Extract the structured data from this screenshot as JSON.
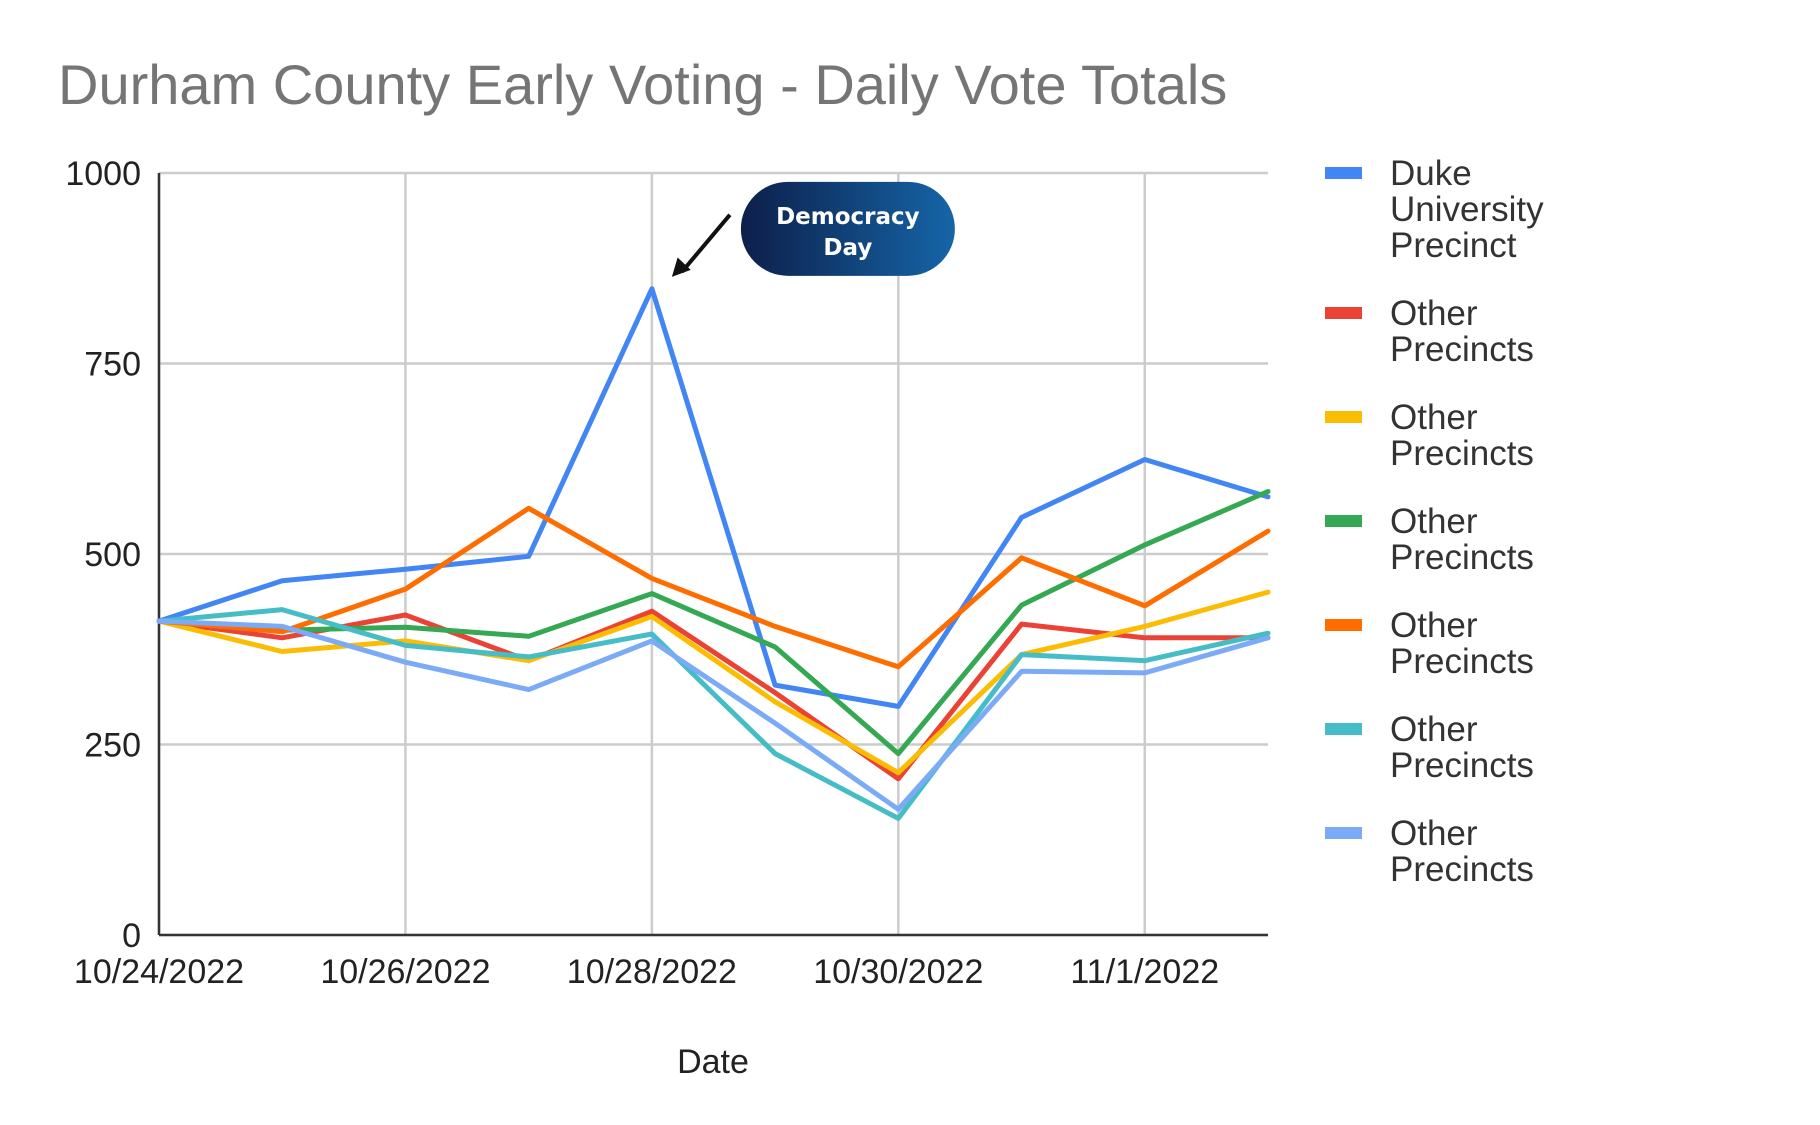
{
  "chart_data": {
    "type": "line",
    "title": "Durham County Early Voting - Daily Vote Totals",
    "xlabel": "Date",
    "ylabel": "",
    "ylim": [
      0,
      1000
    ],
    "yticks": [
      "0",
      "250",
      "500",
      "750",
      "1000"
    ],
    "xlim": [
      "10/24/2022",
      "11/2/2022"
    ],
    "x": [
      "10/24/2022",
      "10/25/2022",
      "10/26/2022",
      "10/27/2022",
      "10/28/2022",
      "10/29/2022",
      "10/30/2022",
      "10/31/2022",
      "11/1/2022",
      "11/2/2022"
    ],
    "xticks": [
      {
        "date": "10/24/2022",
        "label": "10/24/2022"
      },
      {
        "date": "10/26/2022",
        "label": "10/26/2022"
      },
      {
        "date": "10/28/2022",
        "label": "10/28/2022"
      },
      {
        "date": "10/30/2022",
        "label": "10/30/2022"
      },
      {
        "date": "11/1/2022",
        "label": "11/1/2022"
      }
    ],
    "grid": true,
    "legend_position": "right",
    "series": [
      {
        "name": "Duke University Precinct",
        "color": "#4285f4",
        "values": [
          412,
          465,
          480,
          497,
          848,
          328,
          300,
          548,
          624,
          575
        ]
      },
      {
        "name": "Other Precincts",
        "color": "#ea4335",
        "values": [
          412,
          390,
          420,
          360,
          425,
          318,
          205,
          408,
          390,
          390
        ]
      },
      {
        "name": "Other Precincts",
        "color": "#fbbc04",
        "values": [
          412,
          372,
          386,
          360,
          418,
          306,
          213,
          368,
          405,
          450
        ]
      },
      {
        "name": "Other Precincts",
        "color": "#34a853",
        "values": [
          412,
          400,
          404,
          392,
          448,
          378,
          238,
          433,
          512,
          582
        ]
      },
      {
        "name": "Other Precincts",
        "color": "#ff6d01",
        "values": [
          412,
          398,
          454,
          560,
          468,
          405,
          352,
          495,
          432,
          530
        ]
      },
      {
        "name": "Other Precincts",
        "color": "#46bdc6",
        "values": [
          412,
          427,
          380,
          365,
          395,
          238,
          153,
          368,
          360,
          396
        ]
      },
      {
        "name": "Other Precincts",
        "color": "#7baaf7",
        "values": [
          412,
          405,
          358,
          322,
          386,
          278,
          165,
          346,
          344,
          390
        ]
      }
    ],
    "annotations": [
      {
        "text_lines": [
          "Democracy",
          "Day"
        ],
        "date": "10/28/2022",
        "value": 848
      }
    ]
  }
}
